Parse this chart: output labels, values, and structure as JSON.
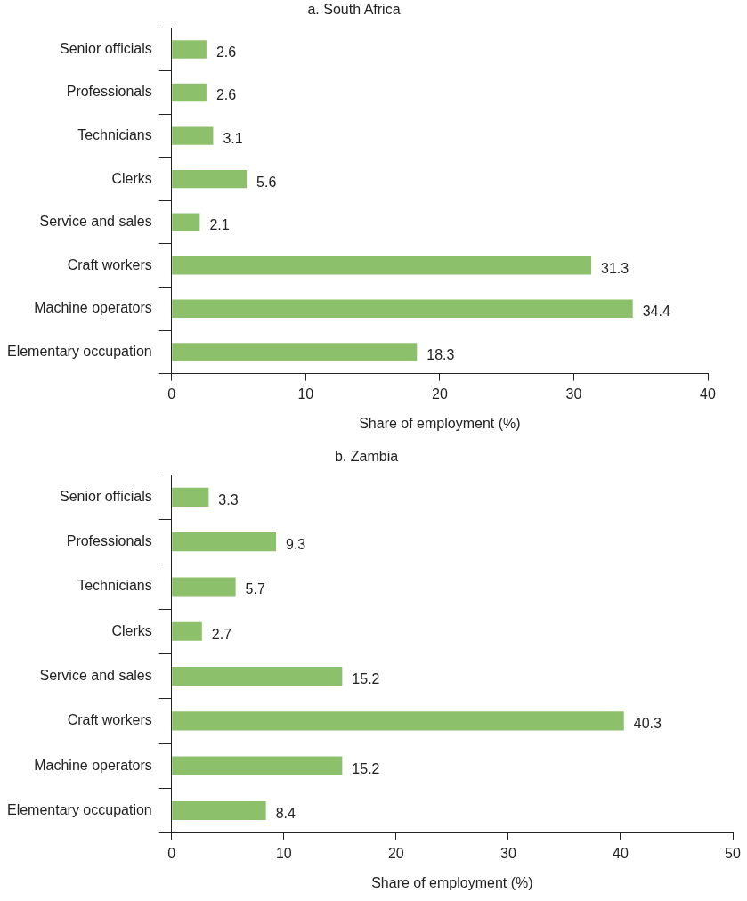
{
  "chart_data": [
    {
      "type": "bar",
      "orientation": "horizontal",
      "title": "a. South Africa",
      "xlabel": "Share of employment (%)",
      "categories": [
        "Senior officials",
        "Professionals",
        "Technicians",
        "Clerks",
        "Service and sales",
        "Craft workers",
        "Machine operators",
        "Elementary occupation"
      ],
      "values": [
        2.6,
        2.6,
        3.1,
        5.6,
        2.1,
        31.3,
        34.4,
        18.3
      ],
      "color": "#8dc06b",
      "xlim": [
        0,
        40
      ],
      "xticks": [
        0,
        10,
        20,
        30,
        40
      ],
      "data_labels": true,
      "grid": false,
      "legend": false
    },
    {
      "type": "bar",
      "orientation": "horizontal",
      "title": "b. Zambia",
      "xlabel": "Share of employment (%)",
      "categories": [
        "Senior officials",
        "Professionals",
        "Technicians",
        "Clerks",
        "Service and sales",
        "Craft workers",
        "Machine operators",
        "Elementary occupation"
      ],
      "values": [
        3.3,
        9.3,
        5.7,
        2.7,
        15.2,
        40.3,
        15.2,
        8.4
      ],
      "color": "#8dc06b",
      "xlim": [
        0,
        50
      ],
      "xticks": [
        0,
        10,
        20,
        30,
        40,
        50
      ],
      "data_labels": true,
      "grid": false,
      "legend": false
    }
  ]
}
